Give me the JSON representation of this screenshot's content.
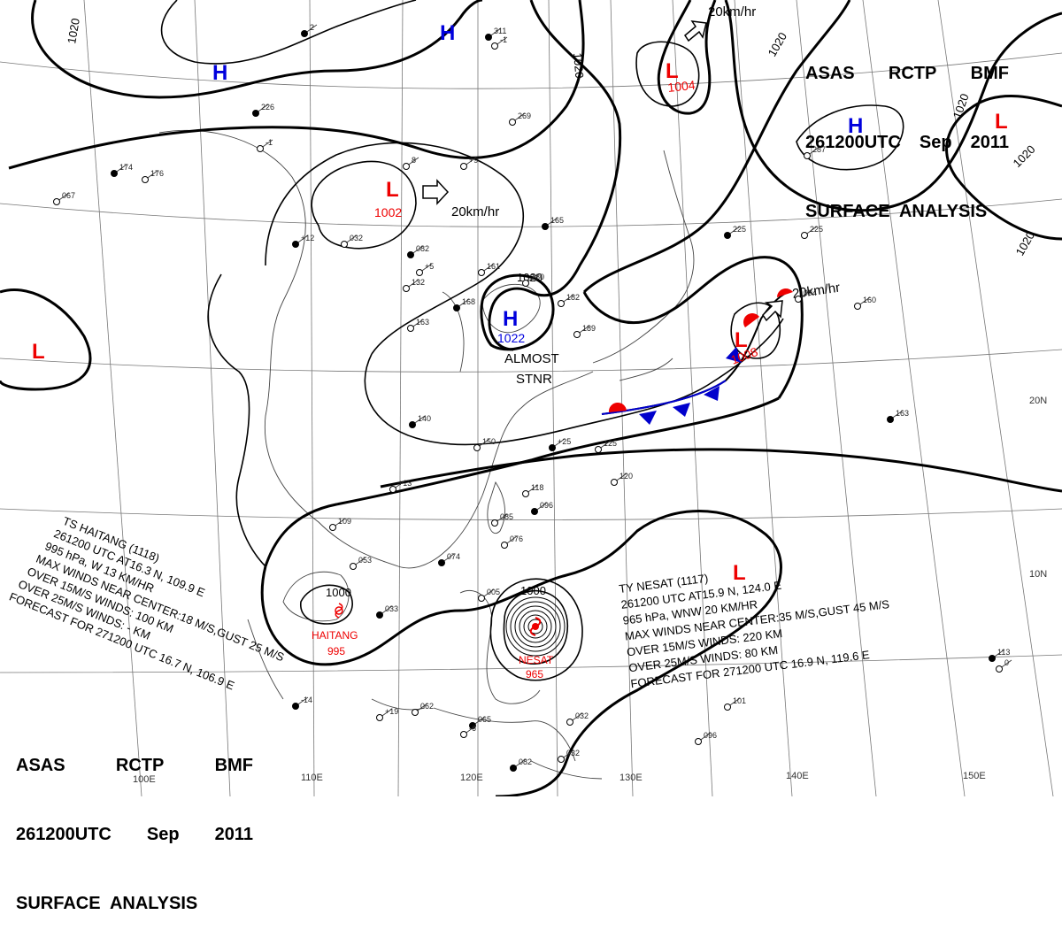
{
  "header_top": {
    "agency": "ASAS",
    "station": "RCTP",
    "office": "BMF",
    "time": "261200UTC",
    "month": "Sep",
    "year": "2011",
    "title": "SURFACE  ANALYSIS"
  },
  "header_bottom": {
    "agency": "ASAS",
    "station": "RCTP",
    "office": "BMF",
    "time": "261200UTC",
    "month": "Sep",
    "year": "2011",
    "title": "SURFACE  ANALYSIS"
  },
  "pressure_centers": [
    {
      "id": "H1",
      "type": "H",
      "value": ""
    },
    {
      "id": "H2",
      "type": "H",
      "value": ""
    },
    {
      "id": "H3",
      "type": "H",
      "value": ""
    },
    {
      "id": "H4",
      "type": "H",
      "value": "1022"
    },
    {
      "id": "L1",
      "type": "L",
      "value": "1002"
    },
    {
      "id": "L2",
      "type": "L",
      "value": "1004"
    },
    {
      "id": "L3",
      "type": "L",
      "value": "1008"
    },
    {
      "id": "L4",
      "type": "L",
      "value": ""
    },
    {
      "id": "L5",
      "type": "L",
      "value": ""
    },
    {
      "id": "L6",
      "type": "L",
      "value": ""
    }
  ],
  "movement_labels": {
    "low1002": "20km/hr",
    "low1004": "20km/hr",
    "low1008": "20km/hr",
    "high1022_l1": "ALMOST",
    "high1022_l2": "STNR"
  },
  "isobar_labels": [
    "1020",
    "1020",
    "1020",
    "1020",
    "1020",
    "1020",
    "1020",
    "1000",
    "1000"
  ],
  "latitude_labels": [
    "20N",
    "10N"
  ],
  "longitude_labels": [
    "110E",
    "120E",
    "130E",
    "140E",
    "150E",
    "100E"
  ],
  "storm_haitang": {
    "marker_label": "HAITANG",
    "pressure": "995",
    "lines": [
      "TS  HAITANG  (1118)",
      "261200 UTC  AT16.3 N, 109.9 E",
      "995 hPa, W  13 KM/HR",
      "MAX WINDS NEAR CENTER:18 M/S,GUST 25 M/S",
      "OVER 15M/S WINDS: 100 KM",
      "OVER 25M/S WINDS: - KM",
      "FORECAST FOR 271200 UTC 16.7 N, 106.9 E"
    ]
  },
  "storm_nesat": {
    "marker_label": "NESAT",
    "pressure": "965",
    "lines": [
      "TY  NESAT  (1117)",
      "261200 UTC  AT15.9 N, 124.0 E",
      "965 hPa, WNW  20 KM/HR",
      "MAX WINDS NEAR CENTER:35 M/S,GUST 45 M/S",
      "OVER 15M/S WINDS: 220 KM",
      "OVER 25M/S WINDS: 80 KM",
      "FORECAST FOR 271200  UTC 16.9 N, 119.6 E"
    ]
  },
  "station_numbers": [
    "311",
    "-1",
    "269",
    "174",
    "067",
    "176",
    "226",
    "-1",
    "032",
    "082",
    "132",
    "163",
    "168",
    "161",
    "180",
    "165",
    "182",
    "189",
    "225",
    "225",
    "287",
    "140",
    "150",
    "118",
    "096",
    "085",
    "076",
    "074",
    "053",
    "109",
    "033",
    "005",
    "062",
    "065",
    "032",
    "032",
    "113",
    "101",
    "096",
    "082",
    "120",
    "125",
    "163",
    "160",
    "094",
    "2",
    "8",
    "+9",
    "+12",
    "+5",
    "+13",
    "+25",
    "+19",
    "-6",
    "-14",
    "0"
  ]
}
